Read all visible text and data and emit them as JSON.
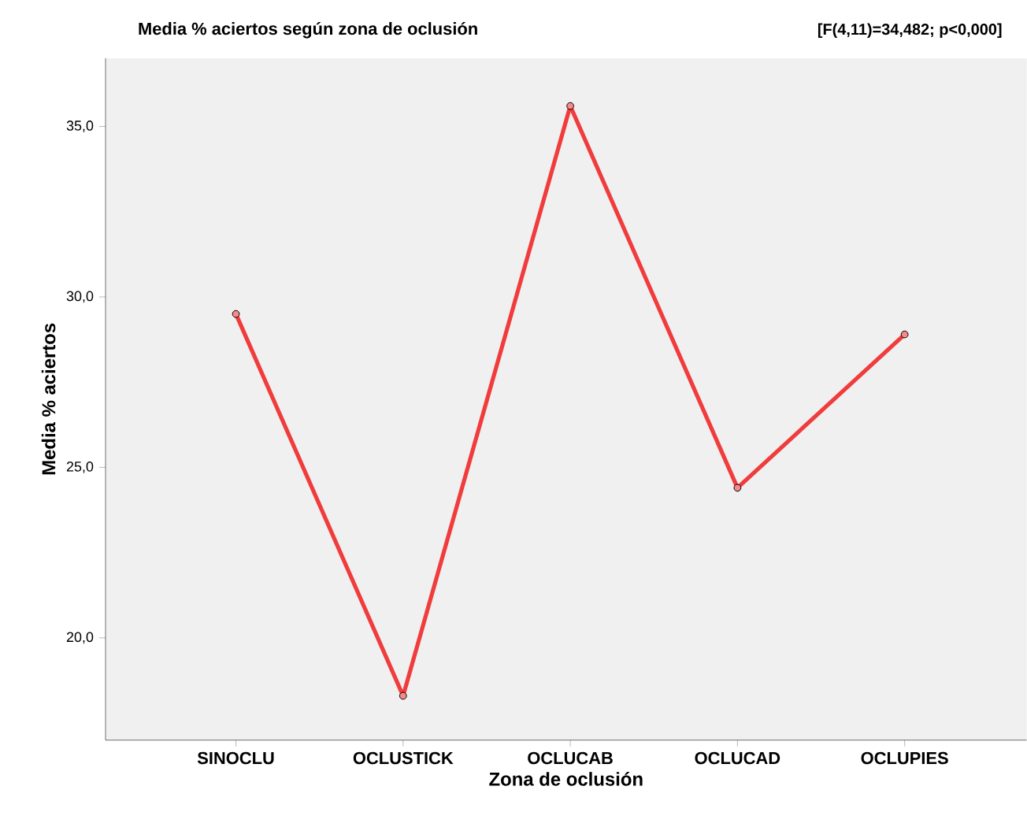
{
  "chart_data": {
    "type": "line",
    "title": "Media % aciertos según zona de oclusión",
    "annotations": [
      "[F(4,11)=34,482; p<0,000]"
    ],
    "xlabel": "Zona de oclusión",
    "ylabel": "Media % aciertos",
    "categories": [
      "SINOCLU",
      "OCLUSTICK",
      "OCLUCAB",
      "OCLUCAD",
      "OCLUPIES"
    ],
    "series": [
      {
        "color": "#f03c3c",
        "values": [
          29.5,
          18.3,
          35.6,
          24.4,
          28.9
        ]
      }
    ],
    "ylim": [
      17,
      37
    ],
    "yticks": [
      {
        "value": 20,
        "label": "20,0"
      },
      {
        "value": 25,
        "label": "25,0"
      },
      {
        "value": 30,
        "label": "30,0"
      },
      {
        "value": 35,
        "label": "35,0"
      }
    ],
    "marker": "circle",
    "line_style": "solid"
  }
}
